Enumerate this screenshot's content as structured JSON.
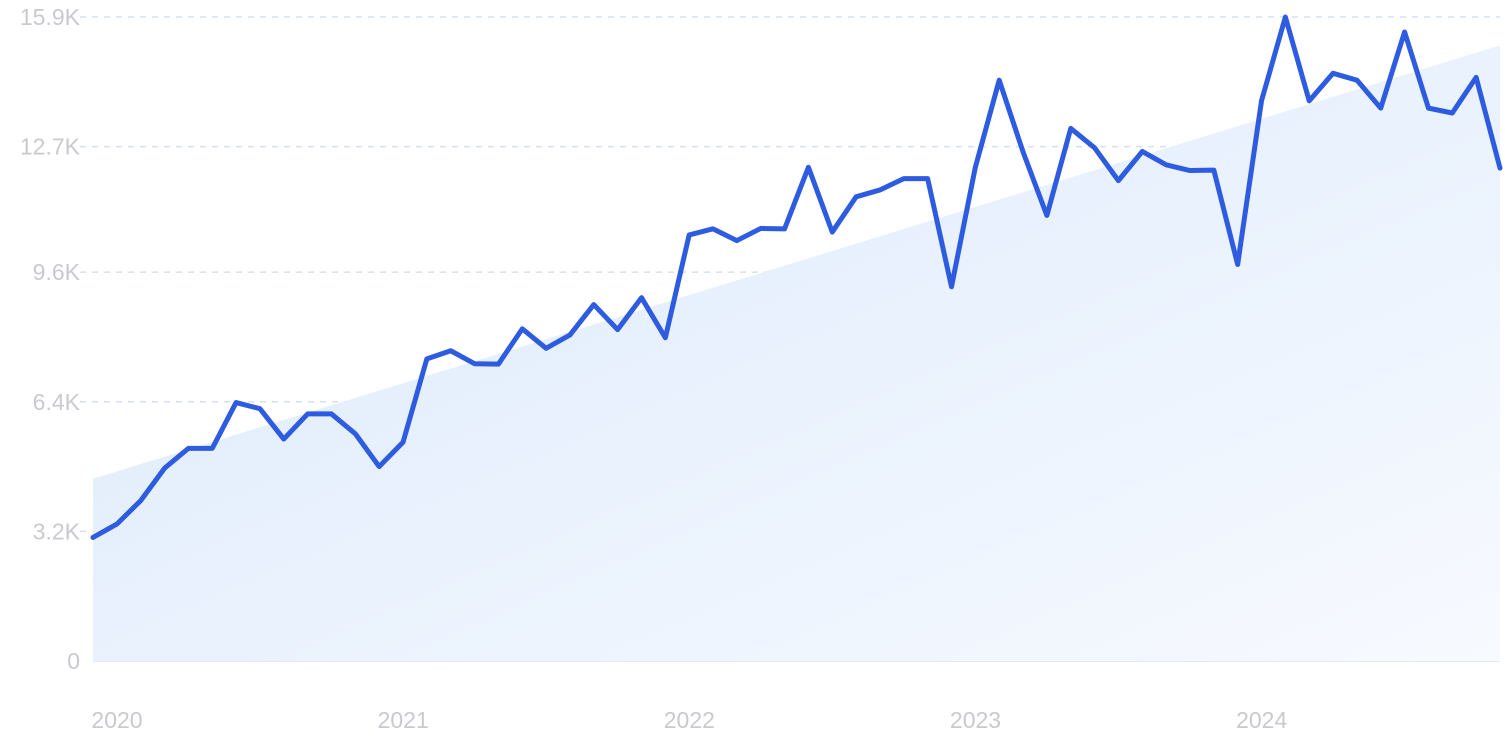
{
  "chart_data": {
    "type": "line",
    "title": "",
    "xlabel": "",
    "ylabel": "",
    "y_ticks": [
      0,
      3200,
      6400,
      9600,
      12700,
      15900
    ],
    "y_tick_labels": [
      "0",
      "3.2K",
      "6.4K",
      "9.6K",
      "12.7K",
      "15.9K"
    ],
    "ylim": [
      0,
      15900
    ],
    "xlim": [
      2020.0,
      2024.9167
    ],
    "x_tick_labels": [
      "2020",
      "2021",
      "2022",
      "2023",
      "2024"
    ],
    "x_tick_values": [
      2020.0,
      2021.0,
      2022.0,
      2023.0,
      2024.0
    ],
    "grid": true,
    "line_color": "#2e5ce0",
    "trend_fill_color": "#e1edfb",
    "trend": {
      "x": [
        2020.0,
        2024.9167
      ],
      "y": [
        4500,
        15200
      ]
    },
    "series": [
      {
        "x": [
          2020.0,
          2020.0833,
          2020.1667,
          2020.25,
          2020.3333,
          2020.4167,
          2020.5,
          2020.5833,
          2020.6667,
          2020.75,
          2020.8333,
          2020.9167,
          2021.0,
          2021.0833,
          2021.1667,
          2021.25,
          2021.3333,
          2021.4167,
          2021.5,
          2021.5833,
          2021.6667,
          2021.75,
          2021.8333,
          2021.9167,
          2022.0,
          2022.0833,
          2022.1667,
          2022.25,
          2022.3333,
          2022.4167,
          2022.5,
          2022.5833,
          2022.6667,
          2022.75,
          2022.8333,
          2022.9167,
          2023.0,
          2023.0833,
          2023.1667,
          2023.25,
          2023.3333,
          2023.4167,
          2023.5,
          2023.5833,
          2023.6667,
          2023.75,
          2023.8333,
          2023.9167,
          2024.0,
          2024.0833,
          2024.1667,
          2024.25,
          2024.3333,
          2024.4167,
          2024.5,
          2024.5833,
          2024.6667,
          2024.75,
          2024.8333,
          2024.9167
        ],
        "values": [
          3050,
          3380,
          3960,
          4760,
          5250,
          5250,
          6380,
          6230,
          5480,
          6100,
          6100,
          5610,
          4800,
          5400,
          7460,
          7660,
          7340,
          7330,
          8200,
          7720,
          8050,
          8800,
          8180,
          8970,
          7980,
          10520,
          10670,
          10380,
          10680,
          10670,
          12190,
          10590,
          11460,
          11630,
          11910,
          11910,
          9240,
          12190,
          14340,
          12570,
          11000,
          13150,
          12670,
          11860,
          12580,
          12250,
          12110,
          12120,
          9790,
          13830,
          15900,
          13830,
          14510,
          14340,
          13650,
          15530,
          13650,
          13530,
          14410,
          12170
        ]
      }
    ]
  }
}
